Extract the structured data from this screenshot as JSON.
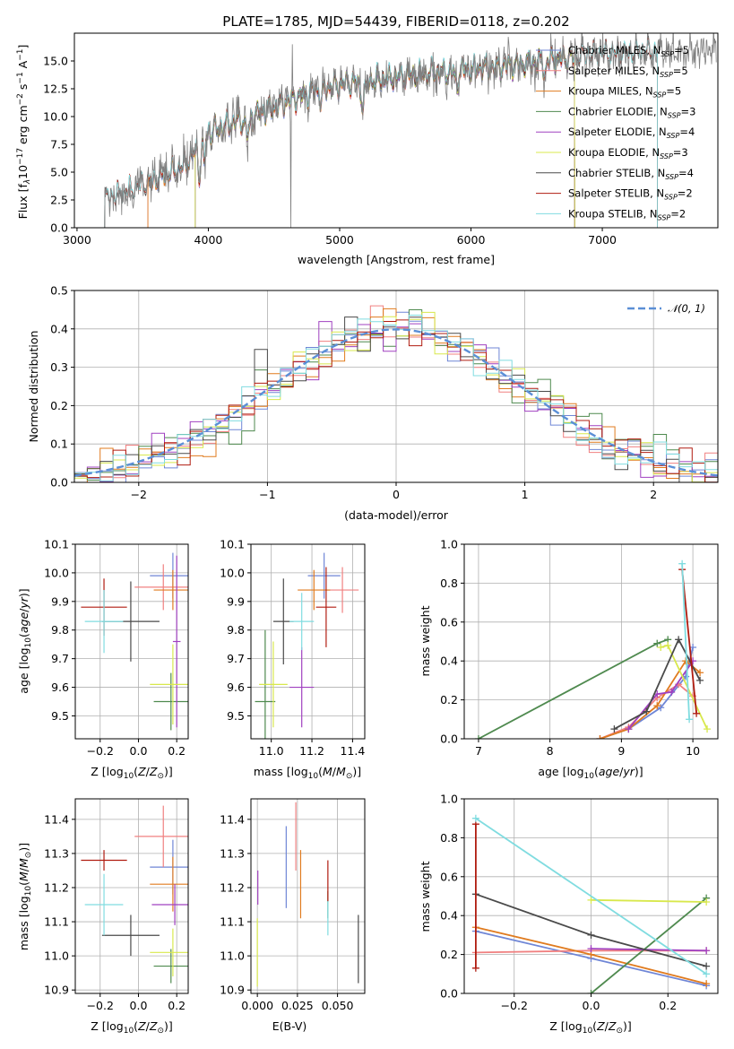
{
  "colors": {
    "Chabrier MILES": "#6f86d6",
    "Salpeter MILES": "#f08080",
    "Kroupa MILES": "#e07b1f",
    "Chabrier ELODIE": "#4f8a4f",
    "Salpeter ELODIE": "#a040c0",
    "Kroupa ELODIE": "#d8e84c",
    "Chabrier STELIB": "#4a4a4a",
    "Salpeter STELIB": "#b01c10",
    "Kroupa STELIB": "#80dce0",
    "spectrum": "#808080",
    "gaussian": "#5b8fd6"
  },
  "chart_data": [
    {
      "type": "line",
      "title": "PLATE=1785, MJD=54439, FIBERID=0118, z=0.202",
      "xlabel": "wavelength [Angstrom, rest frame]",
      "ylabel": "Flux [f_λ 10^-17 erg cm^-2 s^-1 A^-1]",
      "xlim": [
        2980,
        7880
      ],
      "ylim": [
        0,
        17.5
      ],
      "xticks": [
        "3000",
        "4000",
        "5000",
        "6000",
        "7000"
      ],
      "yticks": [
        "0.0",
        "2.5",
        "5.0",
        "7.5",
        "10.0",
        "12.5",
        "15.0"
      ],
      "continuum": {
        "x": [
          3210,
          3300,
          3500,
          3800,
          3950,
          4000,
          4300,
          4800,
          5100,
          5800,
          6300,
          6900,
          7400
        ],
        "y": [
          2.5,
          2.9,
          3.8,
          5.4,
          7.4,
          8.6,
          9.9,
          12.3,
          13.1,
          14.0,
          14.6,
          15.5,
          15.8
        ]
      },
      "model_starts": {
        "MILES": 3540,
        "ELODIE": 3900,
        "STELIB": 3210
      },
      "model_ends": {
        "MILES": 6790,
        "ELODIE": 6790,
        "STELIB": 7420
      },
      "legend": [
        "Chabrier MILES, N_SSP=5",
        "Salpeter MILES, N_SSP=5",
        "Kroupa MILES, N_SSP=5",
        "Chabrier ELODIE, N_SSP=3",
        "Salpeter ELODIE, N_SSP=4",
        "Kroupa ELODIE, N_SSP=3",
        "Chabrier STELIB, N_SSP=4",
        "Salpeter STELIB, N_SSP=2",
        "Kroupa STELIB, N_SSP=2"
      ],
      "legend_position": "right"
    },
    {
      "type": "line",
      "xlabel": "(data-model)/error",
      "ylabel": "Normed distribution",
      "xlim": [
        -2.5,
        2.5
      ],
      "ylim": [
        0,
        0.5
      ],
      "xticks": [
        "−2",
        "−1",
        "0",
        "1",
        "2"
      ],
      "yticks": [
        "0.0",
        "0.1",
        "0.2",
        "0.3",
        "0.4",
        "0.5"
      ],
      "legend": [
        "𝒩(0, 1)"
      ],
      "legend_position": "top-right",
      "histogram_bins": [
        -2.5,
        2.5,
        0.1
      ],
      "gaussian": {
        "mean": 0,
        "sigma": 1
      }
    },
    {
      "type": "scatter",
      "xlabel": "Z [log10(Z/Z☉)]",
      "ylabel": "age  [log10(age/yr)]",
      "xlim": [
        -0.33,
        0.26
      ],
      "ylim": [
        9.42,
        10.1
      ],
      "xticks": [
        "−0.2",
        "0.0",
        "0.2"
      ],
      "yticks": [
        "9.5",
        "9.6",
        "9.7",
        "9.8",
        "9.9",
        "10.0",
        "10.1"
      ],
      "points": [
        {
          "model": "Chabrier MILES",
          "x": 0.18,
          "y": 9.99,
          "xerr": 0.12,
          "yerr": 0.08
        },
        {
          "model": "Salpeter MILES",
          "x": 0.13,
          "y": 9.95,
          "xerr": 0.15,
          "yerr": 0.08
        },
        {
          "model": "Kroupa MILES",
          "x": 0.18,
          "y": 9.94,
          "xerr": 0.1,
          "yerr": 0.07
        },
        {
          "model": "Chabrier ELODIE",
          "x": 0.17,
          "y": 9.55,
          "xerr": 0.09,
          "yerr": 0.1
        },
        {
          "model": "Salpeter ELODIE",
          "x": 0.2,
          "y": 9.76,
          "xerr": 0.02,
          "yerr": 0.3
        },
        {
          "model": "Kroupa ELODIE",
          "x": 0.18,
          "y": 9.61,
          "xerr": 0.12,
          "yerr": 0.14
        },
        {
          "model": "Chabrier STELIB",
          "x": -0.04,
          "y": 9.83,
          "xerr": 0.15,
          "yerr": 0.14
        },
        {
          "model": "Salpeter STELIB",
          "x": -0.18,
          "y": 9.88,
          "xerr": 0.12,
          "yerr": 0.1
        },
        {
          "model": "Kroupa STELIB",
          "x": -0.18,
          "y": 9.83,
          "xerr": 0.1,
          "yerr": 0.11
        }
      ]
    },
    {
      "type": "scatter",
      "xlabel": "mass [log10(M/M☉)]",
      "ylabel": "",
      "xlim": [
        10.9,
        11.46
      ],
      "ylim": [
        9.42,
        10.1
      ],
      "xticks": [
        "11.0",
        "11.2",
        "11.4"
      ],
      "yticks": [
        "9.5",
        "9.6",
        "9.7",
        "9.8",
        "9.9",
        "10.0",
        "10.1"
      ],
      "points": [
        {
          "model": "Chabrier MILES",
          "x": 11.26,
          "y": 9.99,
          "xerr": 0.08,
          "yerr": 0.08
        },
        {
          "model": "Salpeter MILES",
          "x": 11.35,
          "y": 9.94,
          "xerr": 0.08,
          "yerr": 0.08
        },
        {
          "model": "Kroupa MILES",
          "x": 11.21,
          "y": 9.94,
          "xerr": 0.08,
          "yerr": 0.07
        },
        {
          "model": "Chabrier ELODIE",
          "x": 10.97,
          "y": 9.55,
          "xerr": 0.05,
          "yerr": 0.25
        },
        {
          "model": "Salpeter ELODIE",
          "x": 11.15,
          "y": 9.6,
          "xerr": 0.06,
          "yerr": 0.14
        },
        {
          "model": "Kroupa ELODIE",
          "x": 11.01,
          "y": 9.61,
          "xerr": 0.07,
          "yerr": 0.15
        },
        {
          "model": "Chabrier STELIB",
          "x": 11.06,
          "y": 9.83,
          "xerr": 0.05,
          "yerr": 0.15
        },
        {
          "model": "Salpeter STELIB",
          "x": 11.27,
          "y": 9.88,
          "xerr": 0.05,
          "yerr": 0.14
        },
        {
          "model": "Kroupa STELIB",
          "x": 11.15,
          "y": 9.83,
          "xerr": 0.06,
          "yerr": 0.1
        }
      ]
    },
    {
      "type": "line",
      "xlabel": "age  [log10(age/yr)]",
      "ylabel": "mass weight",
      "xlim": [
        6.8,
        10.35
      ],
      "ylim": [
        0,
        1.0
      ],
      "xticks": [
        "7",
        "8",
        "9",
        "10"
      ],
      "yticks": [
        "0.0",
        "0.2",
        "0.4",
        "0.6",
        "0.8",
        "1.0"
      ],
      "series": [
        {
          "model": "Chabrier MILES",
          "x": [
            8.7,
            9.1,
            9.55,
            9.9,
            10.0
          ],
          "y": [
            0.0,
            0.05,
            0.16,
            0.32,
            0.47
          ]
        },
        {
          "model": "Salpeter MILES",
          "x": [
            8.7,
            9.1,
            9.5,
            9.8,
            10.0
          ],
          "y": [
            0.0,
            0.06,
            0.21,
            0.28,
            0.22
          ]
        },
        {
          "model": "Kroupa MILES",
          "x": [
            8.7,
            9.1,
            9.5,
            9.9,
            10.1
          ],
          "y": [
            0.0,
            0.05,
            0.17,
            0.4,
            0.34
          ]
        },
        {
          "model": "Chabrier ELODIE",
          "x": [
            7.0,
            9.5,
            9.65
          ],
          "y": [
            0.0,
            0.49,
            0.51
          ]
        },
        {
          "model": "Salpeter ELODIE",
          "x": [
            9.1,
            9.5,
            9.7,
            10.0
          ],
          "y": [
            0.05,
            0.23,
            0.24,
            0.4
          ]
        },
        {
          "model": "Kroupa ELODIE",
          "x": [
            9.55,
            9.65,
            10.2
          ],
          "y": [
            0.47,
            0.48,
            0.05
          ]
        },
        {
          "model": "Chabrier STELIB",
          "x": [
            8.9,
            9.35,
            9.8,
            10.1
          ],
          "y": [
            0.05,
            0.14,
            0.51,
            0.3
          ]
        },
        {
          "model": "Salpeter STELIB",
          "x": [
            9.85,
            10.05
          ],
          "y": [
            0.87,
            0.13
          ]
        },
        {
          "model": "Kroupa STELIB",
          "x": [
            9.85,
            9.95
          ],
          "y": [
            0.9,
            0.1
          ]
        }
      ]
    },
    {
      "type": "scatter",
      "xlabel": "Z [log10(Z/Z☉)]",
      "ylabel": "mass [log10(M/M☉)]",
      "xlim": [
        -0.33,
        0.26
      ],
      "ylim": [
        10.89,
        11.46
      ],
      "xticks": [
        "−0.2",
        "0.0",
        "0.2"
      ],
      "yticks": [
        "10.9",
        "11.0",
        "11.1",
        "11.2",
        "11.3",
        "11.4"
      ],
      "points": [
        {
          "model": "Chabrier MILES",
          "x": 0.18,
          "y": 11.26,
          "xerr": 0.12,
          "yerr": 0.08
        },
        {
          "model": "Salpeter MILES",
          "x": 0.13,
          "y": 11.35,
          "xerr": 0.15,
          "yerr": 0.09
        },
        {
          "model": "Kroupa MILES",
          "x": 0.18,
          "y": 11.21,
          "xerr": 0.12,
          "yerr": 0.08
        },
        {
          "model": "Chabrier ELODIE",
          "x": 0.17,
          "y": 10.97,
          "xerr": 0.09,
          "yerr": 0.05
        },
        {
          "model": "Salpeter ELODIE",
          "x": 0.19,
          "y": 11.15,
          "xerr": 0.12,
          "yerr": 0.06
        },
        {
          "model": "Kroupa ELODIE",
          "x": 0.18,
          "y": 11.01,
          "xerr": 0.12,
          "yerr": 0.07
        },
        {
          "model": "Chabrier STELIB",
          "x": -0.04,
          "y": 11.06,
          "xerr": 0.15,
          "yerr": 0.06
        },
        {
          "model": "Salpeter STELIB",
          "x": -0.18,
          "y": 11.28,
          "xerr": 0.12,
          "yerr": 0.03
        },
        {
          "model": "Kroupa STELIB",
          "x": -0.18,
          "y": 11.15,
          "xerr": 0.1,
          "yerr": 0.09
        }
      ]
    },
    {
      "type": "scatter",
      "xlabel": "E(B-V)",
      "ylabel": "",
      "xlim": [
        -0.004,
        0.067
      ],
      "ylim": [
        10.89,
        11.46
      ],
      "xticks": [
        "0.000",
        "0.025",
        "0.050"
      ],
      "yticks": [
        "10.9",
        "11.0",
        "11.1",
        "11.2",
        "11.3",
        "11.4"
      ],
      "points": [
        {
          "model": "Chabrier MILES",
          "x": 0.018,
          "y": 11.26,
          "yerr": 0.12
        },
        {
          "model": "Salpeter MILES",
          "x": 0.024,
          "y": 11.35,
          "yerr": 0.1
        },
        {
          "model": "Kroupa MILES",
          "x": 0.027,
          "y": 11.21,
          "yerr": 0.1
        },
        {
          "model": "Chabrier ELODIE",
          "x": 0.044,
          "y": 11.15,
          "yerr": 0.04
        },
        {
          "model": "Salpeter ELODIE",
          "x": 0.0003,
          "y": 11.2,
          "yerr": 0.05
        },
        {
          "model": "Kroupa ELODIE",
          "x": 0.0,
          "y": 11.01,
          "yerr": 0.1
        },
        {
          "model": "Chabrier STELIB",
          "x": 0.063,
          "y": 11.02,
          "yerr": 0.1
        },
        {
          "model": "Salpeter STELIB",
          "x": 0.044,
          "y": 11.22,
          "yerr": 0.06
        },
        {
          "model": "Kroupa STELIB",
          "x": 0.044,
          "y": 11.11,
          "yerr": 0.05
        }
      ]
    },
    {
      "type": "line",
      "xlabel": "Z [log10(Z/Z☉)]",
      "ylabel": "mass weight",
      "xlim": [
        -0.33,
        0.33
      ],
      "ylim": [
        0,
        1.0
      ],
      "xticks": [
        "−0.2",
        "0.0",
        "0.2"
      ],
      "yticks": [
        "0.0",
        "0.2",
        "0.4",
        "0.6",
        "0.8",
        "1.0"
      ],
      "series": [
        {
          "model": "Chabrier MILES",
          "x": [
            -0.3,
            0.0,
            0.3
          ],
          "y": [
            0.32,
            0.18,
            0.04
          ]
        },
        {
          "model": "Salpeter MILES",
          "x": [
            -0.3,
            0.0,
            0.3
          ],
          "y": [
            0.21,
            0.22,
            0.22
          ]
        },
        {
          "model": "Kroupa MILES",
          "x": [
            -0.3,
            0.0,
            0.3
          ],
          "y": [
            0.34,
            0.2,
            0.05
          ]
        },
        {
          "model": "Chabrier ELODIE",
          "x": [
            0.0,
            0.3
          ],
          "y": [
            0.0,
            0.49
          ]
        },
        {
          "model": "Salpeter ELODIE",
          "x": [
            0.0,
            0.3
          ],
          "y": [
            0.23,
            0.22
          ]
        },
        {
          "model": "Kroupa ELODIE",
          "x": [
            0.0,
            0.3
          ],
          "y": [
            0.48,
            0.47
          ]
        },
        {
          "model": "Chabrier STELIB",
          "x": [
            -0.3,
            0.0,
            0.3
          ],
          "y": [
            0.51,
            0.3,
            0.14
          ]
        },
        {
          "model": "Salpeter STELIB",
          "x": [
            -0.3,
            -0.3
          ],
          "y": [
            0.87,
            0.13
          ]
        },
        {
          "model": "Kroupa STELIB",
          "x": [
            -0.3,
            0.3
          ],
          "y": [
            0.9,
            0.1
          ]
        }
      ]
    }
  ]
}
